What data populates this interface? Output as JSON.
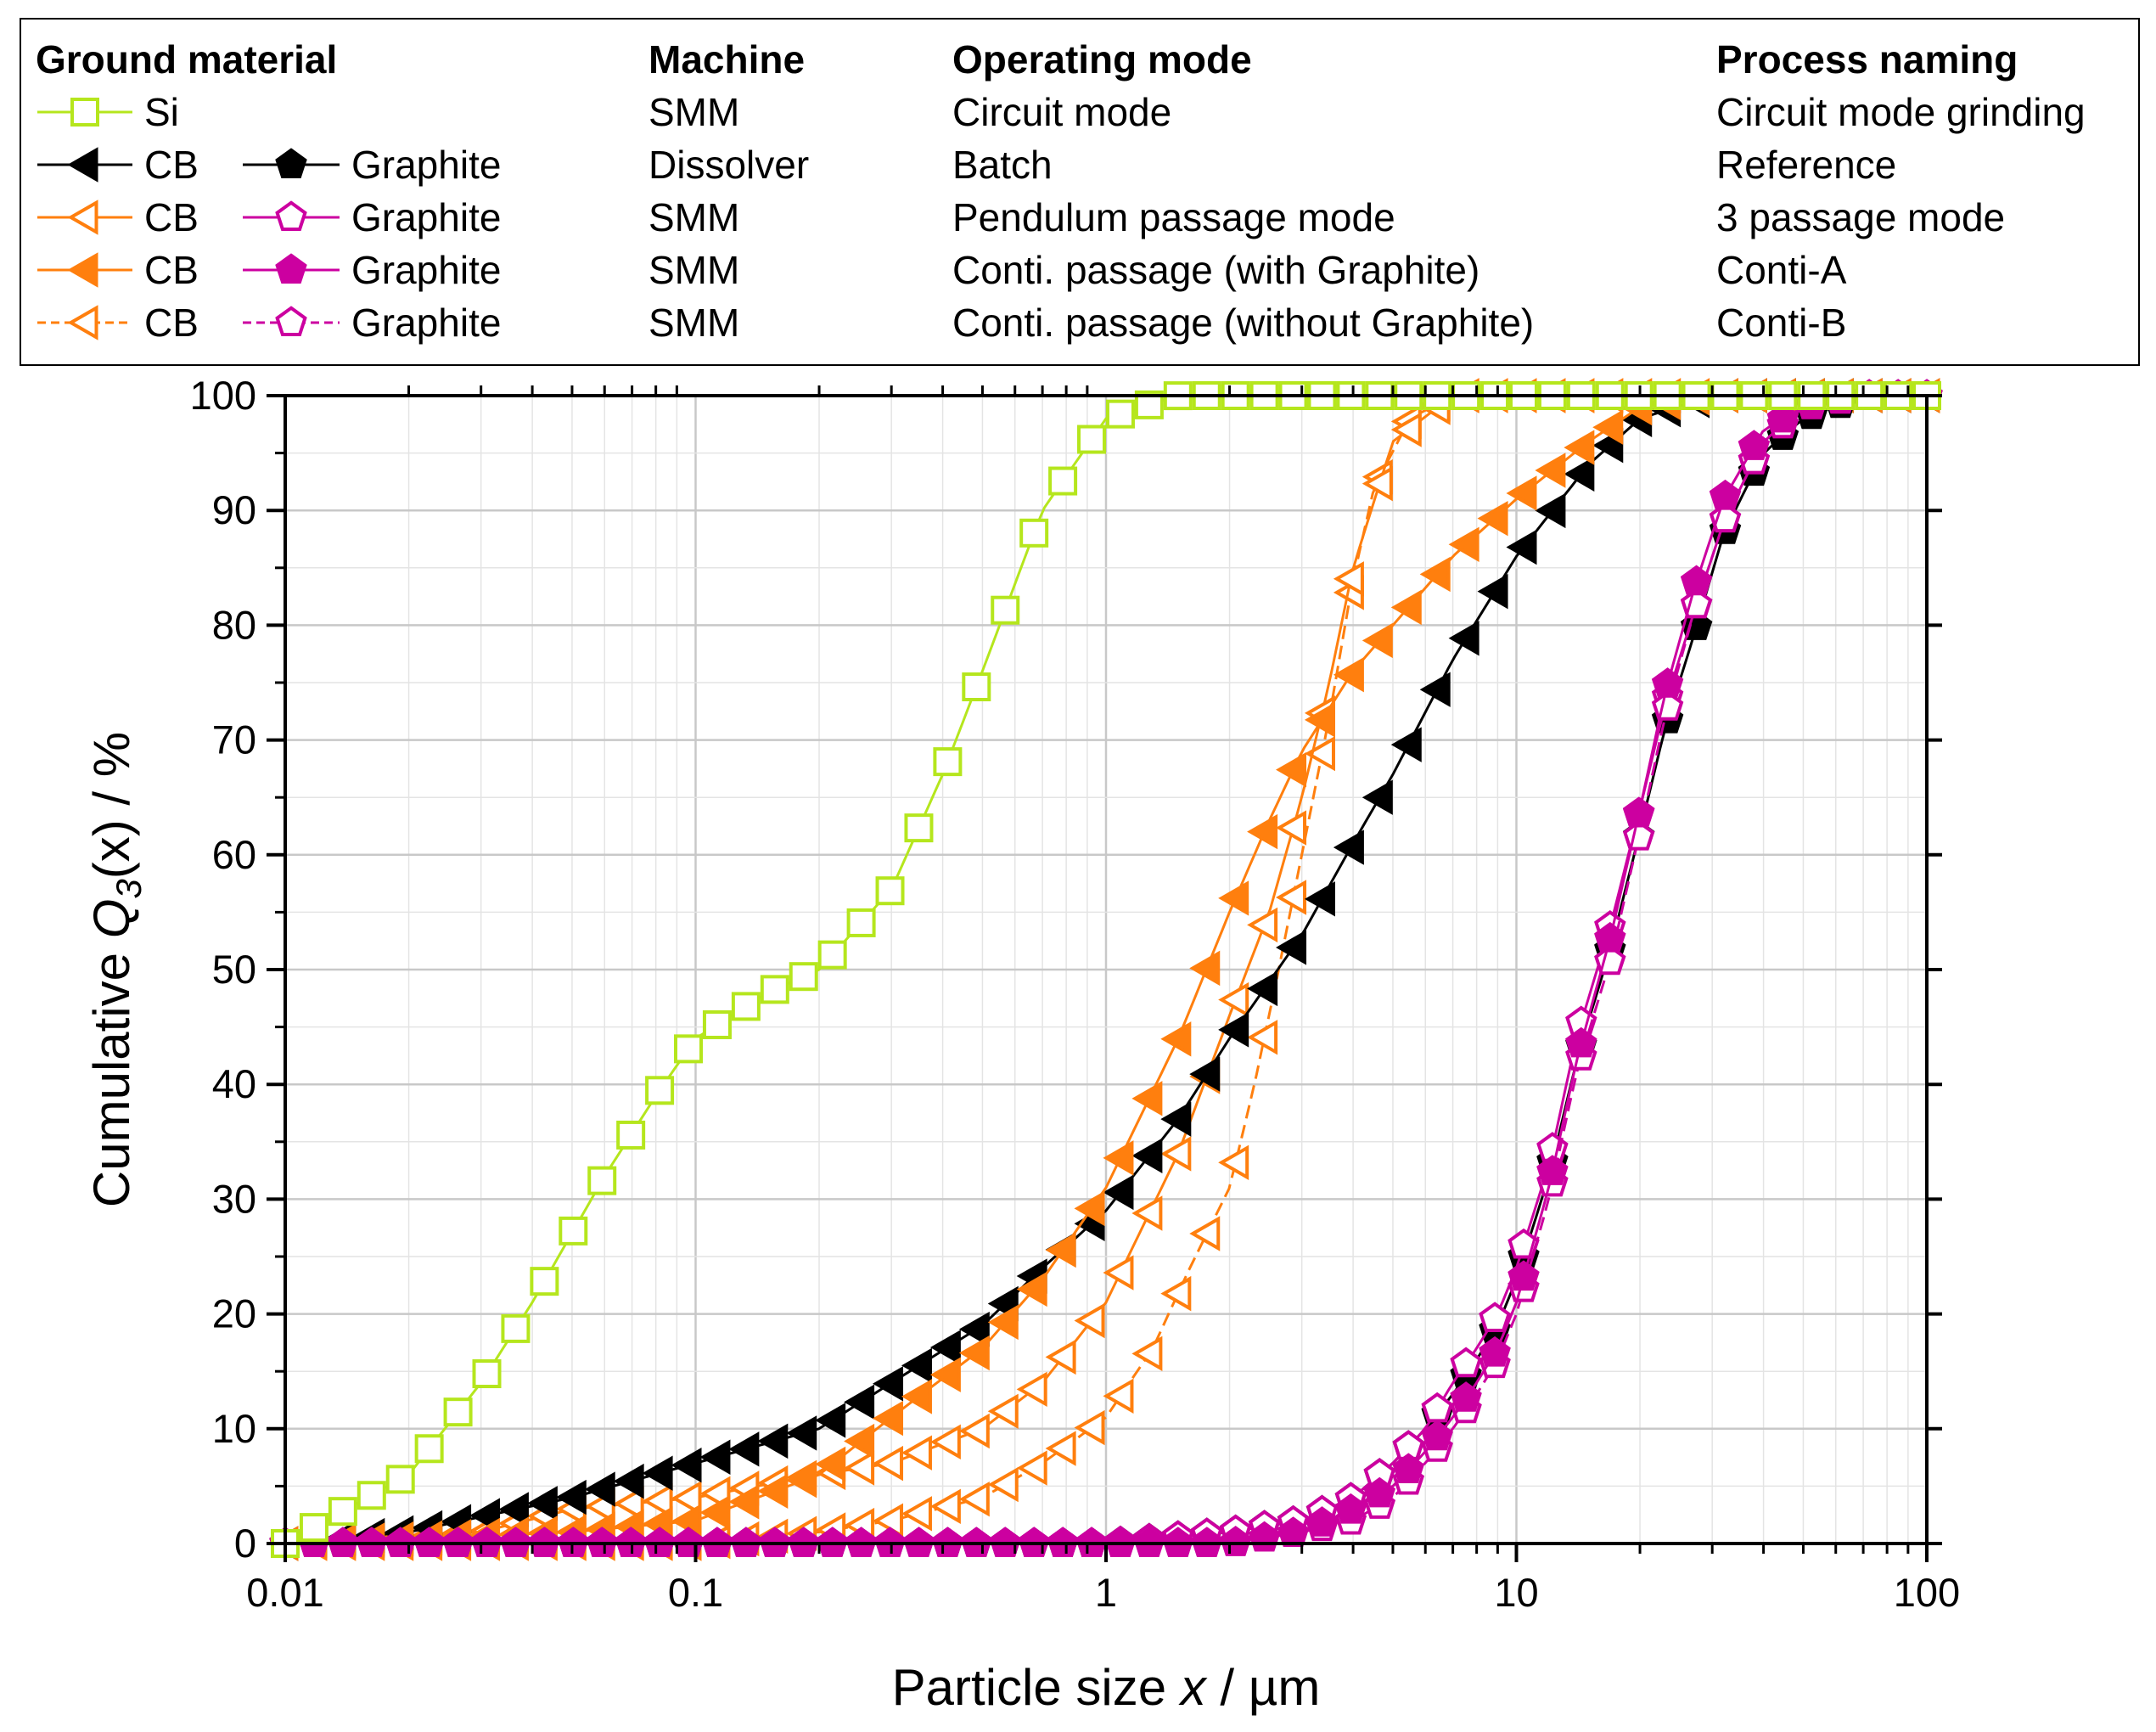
{
  "chart_data": {
    "type": "scatter",
    "xscale": "log",
    "xlim": [
      0.01,
      100
    ],
    "ylim": [
      0,
      100
    ],
    "grid": true,
    "xlabel": {
      "prefix": "Particle size ",
      "var": "x",
      "suffix": " / µm"
    },
    "ylabel": {
      "prefix": "Cumulative ",
      "var": "Q",
      "sub": "3",
      "args": "(x)",
      "suffix": " / %"
    },
    "xticks": [
      {
        "value": 0.01,
        "label": "0.01"
      },
      {
        "value": 0.1,
        "label": "0.1"
      },
      {
        "value": 1,
        "label": "1"
      },
      {
        "value": 10,
        "label": "10"
      },
      {
        "value": 100,
        "label": "100"
      }
    ],
    "yticks": [
      {
        "value": 0,
        "label": "0"
      },
      {
        "value": 10,
        "label": "10"
      },
      {
        "value": 20,
        "label": "20"
      },
      {
        "value": 30,
        "label": "30"
      },
      {
        "value": 40,
        "label": "40"
      },
      {
        "value": 50,
        "label": "50"
      },
      {
        "value": 60,
        "label": "60"
      },
      {
        "value": 70,
        "label": "70"
      },
      {
        "value": 80,
        "label": "80"
      },
      {
        "value": 90,
        "label": "90"
      },
      {
        "value": 100,
        "label": "100"
      }
    ],
    "legend": {
      "placement": "top",
      "headers": {
        "material": "Ground material",
        "machine": "Machine",
        "mode": "Operating mode",
        "naming": "Process naming"
      },
      "rows": [
        {
          "left": {
            "label": "Si",
            "series": "si"
          },
          "machine": "SMM",
          "mode": "Circuit mode",
          "naming": "Circuit mode grinding"
        },
        {
          "left": {
            "label": "CB",
            "series": "cb_ref"
          },
          "right": {
            "label": "Graphite",
            "series": "gr_ref"
          },
          "machine": "Dissolver",
          "mode": "Batch",
          "naming": "Reference"
        },
        {
          "left": {
            "label": "CB",
            "series": "cb_3p"
          },
          "right": {
            "label": "Graphite",
            "series": "gr_3p"
          },
          "machine": "SMM",
          "mode": "Pendulum passage mode",
          "naming": "3 passage mode"
        },
        {
          "left": {
            "label": "CB",
            "series": "cb_ca"
          },
          "right": {
            "label": "Graphite",
            "series": "gr_ca"
          },
          "machine": "SMM",
          "mode": "Conti. passage (with Graphite)",
          "naming": "Conti-A"
        },
        {
          "left": {
            "label": "CB",
            "series": "cb_cb"
          },
          "right": {
            "label": "Graphite",
            "series": "gr_cb"
          },
          "machine": "SMM",
          "mode": "Conti. passage (without Graphite)",
          "naming": "Conti-B"
        }
      ]
    },
    "series": [
      {
        "id": "si",
        "name": "Si",
        "color": "#b5e61d",
        "marker": "square",
        "filled": false,
        "dash": "solid",
        "x": [
          0.01,
          0.02,
          0.03,
          0.04,
          0.06,
          0.08,
          0.1,
          0.15,
          0.2,
          0.3,
          0.4,
          0.5,
          0.7,
          1,
          1.5,
          2,
          5,
          10,
          100
        ],
        "y": [
          0,
          6,
          14,
          21,
          32,
          39,
          44,
          48,
          50,
          57,
          67,
          76,
          90,
          98,
          100,
          100,
          100,
          100,
          100
        ]
      },
      {
        "id": "cb_ref",
        "name": "CB",
        "color": "#000000",
        "marker": "tri-left",
        "filled": true,
        "dash": "solid",
        "x": [
          0.01,
          0.02,
          0.05,
          0.1,
          0.2,
          0.3,
          0.5,
          0.7,
          1,
          1.5,
          2,
          3,
          4,
          5,
          7,
          10,
          15,
          20,
          30,
          100
        ],
        "y": [
          0,
          1,
          4,
          7,
          10,
          14,
          19,
          24,
          29,
          37,
          44,
          53,
          61,
          67,
          77,
          86,
          94,
          98,
          100,
          100
        ]
      },
      {
        "id": "cb_3p",
        "name": "CB",
        "color": "#ff7f0e",
        "marker": "tri-left",
        "filled": false,
        "dash": "solid",
        "x": [
          0.01,
          0.03,
          0.05,
          0.1,
          0.2,
          0.3,
          0.5,
          0.7,
          1,
          1.5,
          2,
          2.5,
          3,
          3.5,
          4,
          5,
          7,
          100
        ],
        "y": [
          0,
          1,
          3,
          4,
          6,
          7,
          10,
          14,
          21,
          34,
          46,
          55,
          65,
          75,
          85,
          96,
          100,
          100
        ]
      },
      {
        "id": "cb_ca",
        "name": "CB",
        "color": "#ff7f0e",
        "marker": "tri-left",
        "filled": true,
        "dash": "solid",
        "x": [
          0.01,
          0.05,
          0.1,
          0.2,
          0.3,
          0.5,
          0.7,
          1,
          1.5,
          2,
          2.5,
          3,
          4,
          5,
          7,
          10,
          15,
          20,
          30,
          100
        ],
        "y": [
          0,
          1,
          2,
          6,
          11,
          17,
          23,
          31,
          44,
          55,
          63,
          69,
          76,
          80,
          86,
          91,
          96,
          99,
          100,
          100
        ]
      },
      {
        "id": "cb_cb",
        "name": "CB",
        "color": "#ff7f0e",
        "marker": "tri-left",
        "filled": false,
        "dash": "dashed",
        "x": [
          0.01,
          0.1,
          0.2,
          0.3,
          0.5,
          0.7,
          1,
          1.3,
          1.6,
          2,
          2.3,
          2.6,
          3,
          3.5,
          4,
          4.5,
          5.5,
          7,
          100
        ],
        "y": [
          0,
          0,
          1,
          2,
          4,
          7,
          11,
          17,
          24,
          31,
          40,
          49,
          60,
          72,
          84,
          92,
          98,
          100,
          100
        ]
      },
      {
        "id": "gr_ref",
        "name": "Graphite",
        "color": "#000000",
        "marker": "pentagon",
        "filled": true,
        "dash": "solid",
        "x": [
          0.01,
          1,
          2,
          3,
          4,
          5,
          6,
          7,
          8,
          9,
          10,
          12,
          14,
          17,
          20,
          23,
          27,
          32,
          40,
          50,
          70,
          100
        ],
        "y": [
          0,
          0,
          1,
          2,
          4,
          7,
          10,
          13,
          16,
          19,
          23,
          32,
          42,
          52,
          62,
          71,
          79,
          88,
          95,
          98,
          100,
          100
        ]
      },
      {
        "id": "gr_3p",
        "name": "Graphite",
        "color": "#cc00a0",
        "marker": "pentagon",
        "filled": false,
        "dash": "solid",
        "x": [
          0.01,
          1,
          2,
          3,
          4,
          5,
          6,
          7,
          8,
          9,
          10,
          12,
          14,
          17,
          20,
          23,
          27,
          32,
          40,
          50,
          70,
          100
        ],
        "y": [
          0,
          0,
          1,
          2,
          4,
          7,
          10,
          14,
          17,
          20,
          24,
          33,
          44,
          54,
          64,
          73,
          81,
          89,
          96,
          99,
          100,
          100
        ]
      },
      {
        "id": "gr_ca",
        "name": "Graphite",
        "color": "#cc00a0",
        "marker": "pentagon",
        "filled": true,
        "dash": "solid",
        "x": [
          0.01,
          1,
          2,
          3,
          4,
          5,
          6,
          7,
          8,
          9,
          10,
          12,
          14,
          17,
          20,
          23,
          27,
          32,
          40,
          50,
          70,
          100
        ],
        "y": [
          0,
          0,
          0,
          1,
          3,
          5,
          8,
          11,
          14,
          17,
          21,
          31,
          42,
          53,
          64,
          74,
          83,
          91,
          97,
          99,
          100,
          100
        ]
      },
      {
        "id": "gr_cb",
        "name": "Graphite",
        "color": "#cc00a0",
        "marker": "pentagon",
        "filled": false,
        "dash": "dashed",
        "x": [
          0.01,
          1,
          2,
          3,
          4,
          5,
          6,
          7,
          8,
          9,
          10,
          12,
          14,
          17,
          20,
          23,
          27,
          32,
          40,
          50,
          70,
          100
        ],
        "y": [
          0,
          0,
          0,
          1,
          2,
          4,
          7,
          10,
          13,
          16,
          20,
          30,
          41,
          51,
          62,
          72,
          81,
          89,
          96,
          99,
          100,
          100
        ]
      }
    ]
  }
}
